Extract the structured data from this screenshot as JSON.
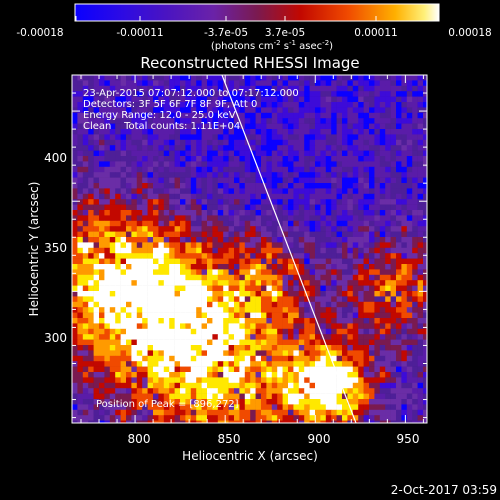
{
  "title": "Reconstructed RHESSI Image",
  "colorbar": {
    "tick_labels": [
      "-0.00018",
      "-0.00011",
      "-3.7e-05",
      "3.7e-05",
      "0.00011",
      "0.00018"
    ],
    "unit_main": "(photons cm",
    "unit_exp1": "-2",
    "unit_mid": " s",
    "unit_exp2": "-1",
    "unit_end": " asec",
    "unit_exp3": "-2",
    "unit_close": ")"
  },
  "annotations": {
    "line1": "23-Apr-2015 07:07:12.000 to 07:17:12.000",
    "line2": "Detectors: 3F 5F 6F 7F 8F 9F, Att 0",
    "line3": "Energy Range: 12.0 - 25.0 keV",
    "line4": "Clean    Total counts: 1.11E+04",
    "peak": "Position of Peak = [896,272]"
  },
  "axes": {
    "xlabel": "Heliocentric X (arcsec)",
    "ylabel": "Heliocentric Y (arcsec)",
    "xticks": [
      "800",
      "850",
      "900",
      "950"
    ],
    "yticks": [
      "300",
      "350",
      "400"
    ]
  },
  "footer": {
    "date": "2-Oct-2017 03:59"
  },
  "colors": {
    "cmap": [
      "#0a00ff",
      "#3d0bd8",
      "#5a1ca8",
      "#4e1f98",
      "#6a2da6",
      "#7a1a50",
      "#c20800",
      "#f04a00",
      "#ff9a00",
      "#ffe800",
      "#ffffff"
    ]
  }
}
